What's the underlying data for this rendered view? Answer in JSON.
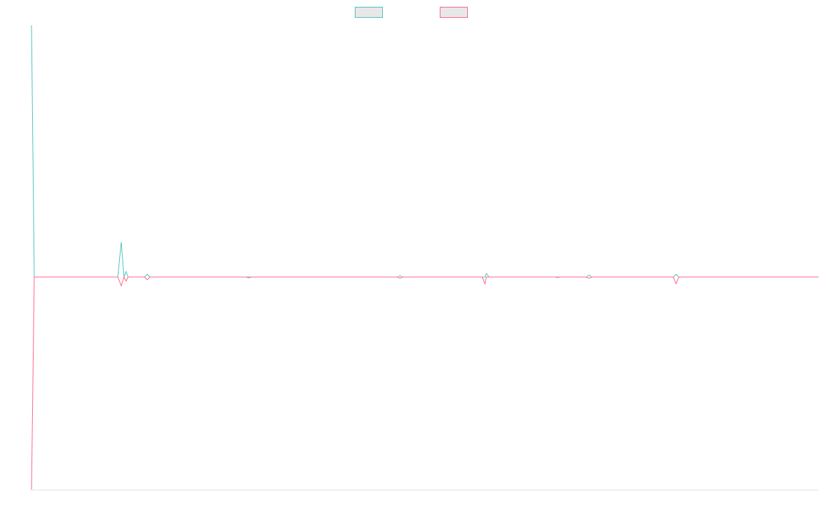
{
  "chart_data": {
    "type": "line",
    "x": [
      0,
      4,
      126,
      131,
      135,
      138,
      141,
      165,
      169,
      173,
      313,
      317,
      321,
      534,
      538,
      542,
      658,
      662,
      664,
      668,
      764,
      768,
      772,
      810,
      814,
      818,
      937,
      941,
      945,
      1149
    ],
    "series": [
      {
        "color": "#4bc0c0",
        "values": [
          1,
          0,
          0,
          0.139,
          0,
          0.022,
          0,
          0,
          0.011,
          0,
          0,
          0,
          0,
          0,
          0.005,
          0,
          0,
          0,
          0.014,
          0,
          0,
          0,
          0,
          0,
          0.008,
          0,
          0,
          0.011,
          0,
          0
        ]
      },
      {
        "color": "#ff6384",
        "values": [
          -0.845,
          0,
          0,
          -0.035,
          0,
          -0.016,
          0,
          0,
          -0.011,
          0,
          0,
          -0.003,
          0,
          0,
          -0.005,
          0,
          0,
          -0.027,
          0,
          0,
          0,
          -0.002,
          0,
          0,
          -0.005,
          0,
          0,
          -0.027,
          0,
          0
        ]
      }
    ],
    "xlim": [
      0,
      1149
    ],
    "ylim": [
      -0.845,
      1
    ],
    "legend": "top"
  }
}
